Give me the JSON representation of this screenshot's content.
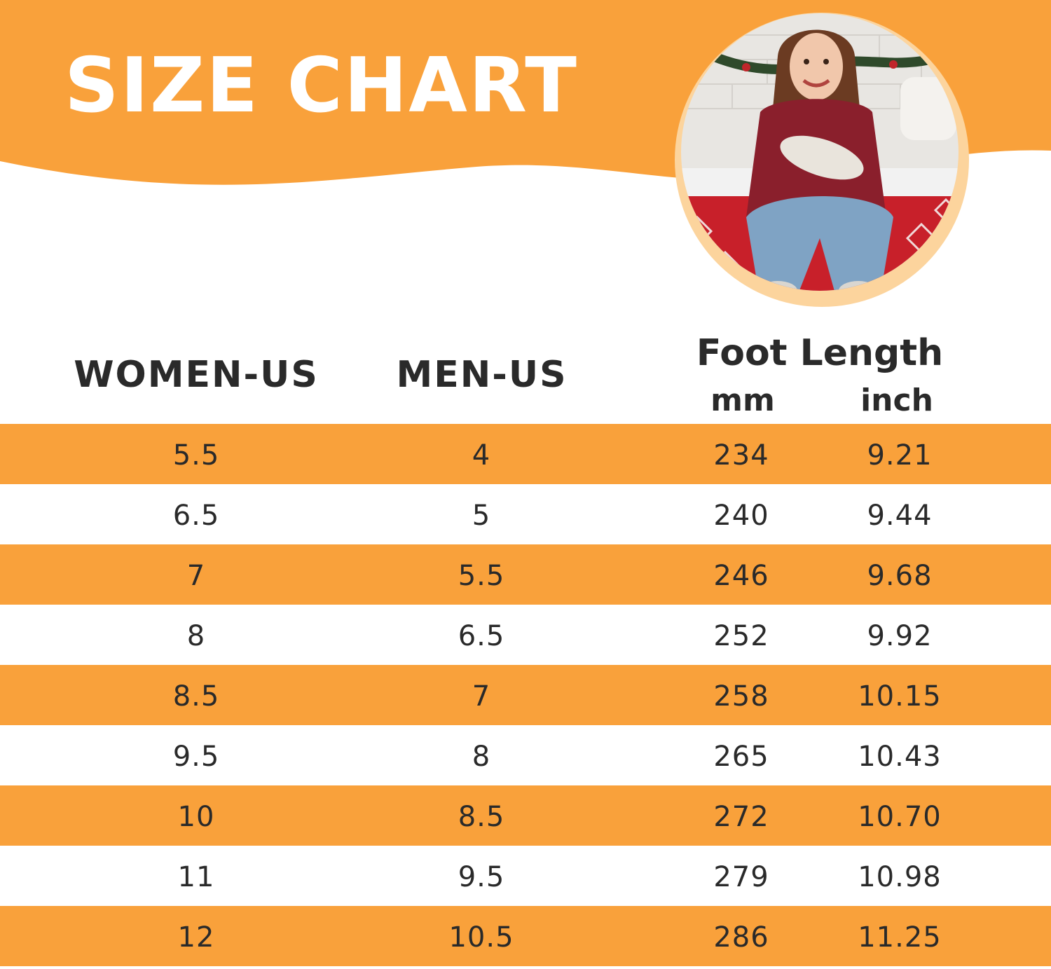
{
  "title": "SIZE CHART",
  "colors": {
    "accent": "#f9a13b",
    "accent_light": "#fcd49d",
    "text": "#2a2a2a"
  },
  "headers": {
    "women": "WOMEN-US",
    "men": "MEN-US",
    "foot_length": "Foot Length",
    "mm": "mm",
    "inch": "inch"
  },
  "rows": [
    {
      "women": "5.5",
      "men": "4",
      "mm": "234",
      "inch": "9.21"
    },
    {
      "women": "6.5",
      "men": "5",
      "mm": "240",
      "inch": "9.44"
    },
    {
      "women": "7",
      "men": "5.5",
      "mm": "246",
      "inch": "9.68"
    },
    {
      "women": "8",
      "men": "6.5",
      "mm": "252",
      "inch": "9.92"
    },
    {
      "women": "8.5",
      "men": "7",
      "mm": "258",
      "inch": "10.15"
    },
    {
      "women": "9.5",
      "men": "8",
      "mm": "265",
      "inch": "10.43"
    },
    {
      "women": "10",
      "men": "8.5",
      "mm": "272",
      "inch": "10.70"
    },
    {
      "women": "11",
      "men": "9.5",
      "mm": "279",
      "inch": "10.98"
    },
    {
      "women": "12",
      "men": "10.5",
      "mm": "286",
      "inch": "11.25"
    }
  ]
}
